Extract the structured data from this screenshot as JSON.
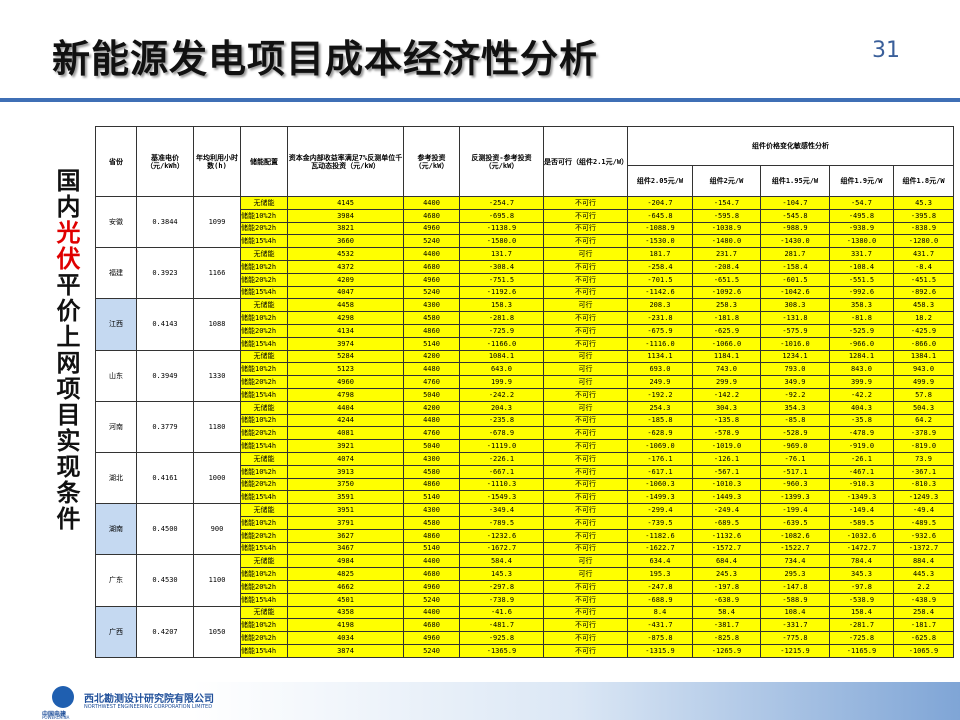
{
  "header": {
    "title": "新能源发电项目成本经济性分析",
    "page_number": "31"
  },
  "side_title": {
    "before": "国内",
    "highlight": "光伏",
    "after": "平价上网项目实现条件"
  },
  "table": {
    "columns": [
      "省份",
      "基准电价（元/kWh）",
      "年均利用小时数(h)",
      "储能配置",
      "资本金内部收益率满足7%反测单位千瓦动态投资（元/kW）",
      "参考投资（元/kW）",
      "反测投资-参考投资（元/kW）",
      "是否可行（组件2.1元/W）"
    ],
    "group_header": "组件价格变化敏感性分析",
    "sensitivity_columns": [
      "组件2.05元/W",
      "组件2元/W",
      "组件1.95元/W",
      "组件1.9元/W",
      "组件1.8元/W"
    ],
    "provinces": [
      {
        "name": "安徽",
        "price": "0.3844",
        "hours": "1099",
        "rows": [
          [
            "无储能",
            "4145",
            "4400",
            "-254.7",
            "不可行",
            "-204.7",
            "-154.7",
            "-104.7",
            "-54.7",
            "45.3"
          ],
          [
            "储能10%2h",
            "3984",
            "4680",
            "-695.8",
            "不可行",
            "-645.8",
            "-595.8",
            "-545.8",
            "-495.8",
            "-395.8"
          ],
          [
            "储能20%2h",
            "3821",
            "4960",
            "-1138.9",
            "不可行",
            "-1088.9",
            "-1038.9",
            "-988.9",
            "-938.9",
            "-838.9"
          ],
          [
            "储能15%4h",
            "3660",
            "5240",
            "-1580.0",
            "不可行",
            "-1530.0",
            "-1480.0",
            "-1430.0",
            "-1380.0",
            "-1280.0"
          ]
        ]
      },
      {
        "name": "福建",
        "price": "0.3923",
        "hours": "1166",
        "rows": [
          [
            "无储能",
            "4532",
            "4400",
            "131.7",
            "可行",
            "181.7",
            "231.7",
            "281.7",
            "331.7",
            "431.7"
          ],
          [
            "储能10%2h",
            "4372",
            "4680",
            "-308.4",
            "不可行",
            "-258.4",
            "-208.4",
            "-158.4",
            "-108.4",
            "-8.4"
          ],
          [
            "储能20%2h",
            "4209",
            "4960",
            "-751.5",
            "不可行",
            "-701.5",
            "-651.5",
            "-601.5",
            "-551.5",
            "-451.5"
          ],
          [
            "储能15%4h",
            "4047",
            "5240",
            "-1192.6",
            "不可行",
            "-1142.6",
            "-1092.6",
            "-1042.6",
            "-992.6",
            "-892.6"
          ]
        ]
      },
      {
        "name": "江西",
        "price": "0.4143",
        "hours": "1088",
        "rows": [
          [
            "无储能",
            "4458",
            "4300",
            "158.3",
            "可行",
            "208.3",
            "258.3",
            "308.3",
            "358.3",
            "458.3"
          ],
          [
            "储能10%2h",
            "4298",
            "4580",
            "-281.8",
            "不可行",
            "-231.8",
            "-181.8",
            "-131.8",
            "-81.8",
            "18.2"
          ],
          [
            "储能20%2h",
            "4134",
            "4860",
            "-725.9",
            "不可行",
            "-675.9",
            "-625.9",
            "-575.9",
            "-525.9",
            "-425.9"
          ],
          [
            "储能15%4h",
            "3974",
            "5140",
            "-1166.0",
            "不可行",
            "-1116.0",
            "-1066.0",
            "-1016.0",
            "-966.0",
            "-866.0"
          ]
        ]
      },
      {
        "name": "山东",
        "price": "0.3949",
        "hours": "1330",
        "rows": [
          [
            "无储能",
            "5284",
            "4200",
            "1084.1",
            "可行",
            "1134.1",
            "1184.1",
            "1234.1",
            "1284.1",
            "1384.1"
          ],
          [
            "储能10%2h",
            "5123",
            "4480",
            "643.0",
            "可行",
            "693.0",
            "743.0",
            "793.0",
            "843.0",
            "943.0"
          ],
          [
            "储能20%2h",
            "4960",
            "4760",
            "199.9",
            "可行",
            "249.9",
            "299.9",
            "349.9",
            "399.9",
            "499.9"
          ],
          [
            "储能15%4h",
            "4798",
            "5040",
            "-242.2",
            "不可行",
            "-192.2",
            "-142.2",
            "-92.2",
            "-42.2",
            "57.8"
          ]
        ]
      },
      {
        "name": "河南",
        "price": "0.3779",
        "hours": "1180",
        "rows": [
          [
            "无储能",
            "4404",
            "4200",
            "204.3",
            "可行",
            "254.3",
            "304.3",
            "354.3",
            "404.3",
            "504.3"
          ],
          [
            "储能10%2h",
            "4244",
            "4480",
            "-235.8",
            "不可行",
            "-185.8",
            "-135.8",
            "-85.8",
            "-35.8",
            "64.2"
          ],
          [
            "储能20%2h",
            "4081",
            "4760",
            "-678.9",
            "不可行",
            "-628.9",
            "-578.9",
            "-528.9",
            "-478.9",
            "-378.9"
          ],
          [
            "储能15%4h",
            "3921",
            "5040",
            "-1119.0",
            "不可行",
            "-1069.0",
            "-1019.0",
            "-969.0",
            "-919.0",
            "-819.0"
          ]
        ]
      },
      {
        "name": "湖北",
        "price": "0.4161",
        "hours": "1000",
        "rows": [
          [
            "无储能",
            "4074",
            "4300",
            "-226.1",
            "不可行",
            "-176.1",
            "-126.1",
            "-76.1",
            "-26.1",
            "73.9"
          ],
          [
            "储能10%2h",
            "3913",
            "4580",
            "-667.1",
            "不可行",
            "-617.1",
            "-567.1",
            "-517.1",
            "-467.1",
            "-367.1"
          ],
          [
            "储能20%2h",
            "3750",
            "4860",
            "-1110.3",
            "不可行",
            "-1060.3",
            "-1010.3",
            "-960.3",
            "-910.3",
            "-810.3"
          ],
          [
            "储能15%4h",
            "3591",
            "5140",
            "-1549.3",
            "不可行",
            "-1499.3",
            "-1449.3",
            "-1399.3",
            "-1349.3",
            "-1249.3"
          ]
        ]
      },
      {
        "name": "湖南",
        "price": "0.4500",
        "hours": "900",
        "rows": [
          [
            "无储能",
            "3951",
            "4300",
            "-349.4",
            "不可行",
            "-299.4",
            "-249.4",
            "-199.4",
            "-149.4",
            "-49.4"
          ],
          [
            "储能10%2h",
            "3791",
            "4580",
            "-789.5",
            "不可行",
            "-739.5",
            "-689.5",
            "-639.5",
            "-589.5",
            "-489.5"
          ],
          [
            "储能20%2h",
            "3627",
            "4860",
            "-1232.6",
            "不可行",
            "-1182.6",
            "-1132.6",
            "-1082.6",
            "-1032.6",
            "-932.6"
          ],
          [
            "储能15%4h",
            "3467",
            "5140",
            "-1672.7",
            "不可行",
            "-1622.7",
            "-1572.7",
            "-1522.7",
            "-1472.7",
            "-1372.7"
          ]
        ]
      },
      {
        "name": "广东",
        "price": "0.4530",
        "hours": "1100",
        "rows": [
          [
            "无储能",
            "4984",
            "4400",
            "584.4",
            "可行",
            "634.4",
            "684.4",
            "734.4",
            "784.4",
            "884.4"
          ],
          [
            "储能10%2h",
            "4825",
            "4680",
            "145.3",
            "可行",
            "195.3",
            "245.3",
            "295.3",
            "345.3",
            "445.3"
          ],
          [
            "储能20%2h",
            "4662",
            "4960",
            "-297.8",
            "不可行",
            "-247.8",
            "-197.8",
            "-147.8",
            "-97.8",
            "2.2"
          ],
          [
            "储能15%4h",
            "4501",
            "5240",
            "-738.9",
            "不可行",
            "-688.9",
            "-638.9",
            "-588.9",
            "-538.9",
            "-438.9"
          ]
        ]
      },
      {
        "name": "广西",
        "price": "0.4207",
        "hours": "1050",
        "rows": [
          [
            "无储能",
            "4358",
            "4400",
            "-41.6",
            "不可行",
            "8.4",
            "58.4",
            "108.4",
            "158.4",
            "258.4"
          ],
          [
            "储能10%2h",
            "4198",
            "4680",
            "-481.7",
            "不可行",
            "-431.7",
            "-381.7",
            "-331.7",
            "-281.7",
            "-181.7"
          ],
          [
            "储能20%2h",
            "4034",
            "4960",
            "-925.8",
            "不可行",
            "-875.8",
            "-825.8",
            "-775.8",
            "-725.8",
            "-625.8"
          ],
          [
            "储能15%4h",
            "3874",
            "5240",
            "-1365.9",
            "不可行",
            "-1315.9",
            "-1265.9",
            "-1215.9",
            "-1165.9",
            "-1065.9"
          ]
        ]
      }
    ]
  },
  "footer": {
    "logo_cn": "中国电建",
    "logo_en": "POWERCHINA",
    "company": "西北勘测设计研究院有限公司",
    "company_en": "NORTHWEST ENGINEERING CORPORATION LIMITED"
  }
}
